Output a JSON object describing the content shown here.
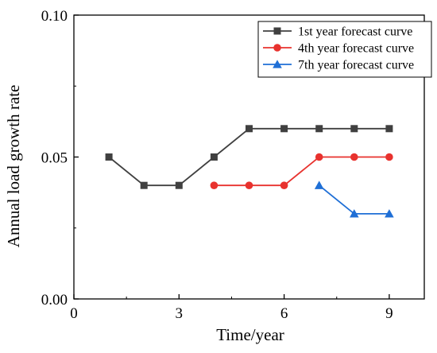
{
  "chart_data": {
    "type": "line",
    "title": "",
    "xlabel": "Time/year",
    "ylabel": "Annual load growth rate",
    "xlim": [
      0,
      10
    ],
    "ylim": [
      0.0,
      0.1
    ],
    "xticks": [
      0,
      3,
      6,
      9
    ],
    "xtick_labels": [
      "0",
      "3",
      "6",
      "9"
    ],
    "yticks": [
      0.0,
      0.05,
      0.1
    ],
    "ytick_labels": [
      "0.00",
      "0.05",
      "0.10"
    ],
    "grid": false,
    "legend_position": "top-right",
    "series": [
      {
        "name": "1st year forecast curve",
        "color": "#404040",
        "marker": "square",
        "x": [
          1,
          2,
          3,
          4,
          5,
          6,
          7,
          8,
          9
        ],
        "y": [
          0.05,
          0.04,
          0.04,
          0.05,
          0.06,
          0.06,
          0.06,
          0.06,
          0.06
        ]
      },
      {
        "name": "4th year forecast curve",
        "color": "#e8322e",
        "marker": "circle",
        "x": [
          4,
          5,
          6,
          7,
          8,
          9
        ],
        "y": [
          0.04,
          0.04,
          0.04,
          0.05,
          0.05,
          0.05
        ]
      },
      {
        "name": "7th year forecast curve",
        "color": "#1f6fd6",
        "marker": "triangle",
        "x": [
          7,
          8,
          9
        ],
        "y": [
          0.04,
          0.03,
          0.03
        ]
      }
    ]
  }
}
